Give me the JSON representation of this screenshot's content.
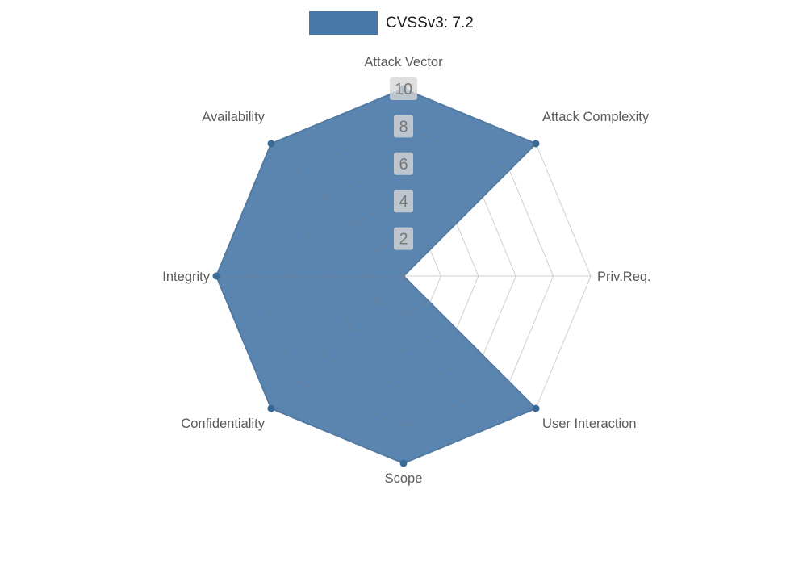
{
  "legend": {
    "label": "CVSSv3: 7.2",
    "swatch_color": "#4878a8"
  },
  "chart_data": {
    "type": "radar",
    "title": "CVSSv3: 7.2",
    "categories": [
      "Attack Vector",
      "Attack Complexity",
      "Priv.Req.",
      "User Interaction",
      "Scope",
      "Confidentiality",
      "Integrity",
      "Availability"
    ],
    "series": [
      {
        "name": "CVSSv3: 7.2",
        "values": [
          10,
          10,
          0,
          10,
          10,
          10,
          10,
          10
        ]
      }
    ],
    "radial_ticks": [
      2,
      4,
      6,
      8,
      10
    ],
    "rmin": 0,
    "rmax": 10,
    "start_axis": "top",
    "direction": "clockwise",
    "grid": true,
    "legend_position": "top-center",
    "colors": {
      "fill": "#4878a8",
      "fill_opacity": 0.9,
      "stroke": "#4878a8",
      "marker": "#3a6a96",
      "grid_line": "#808080",
      "tick_label": "#777777",
      "tick_label_bg": "#d6d6d6",
      "axis_label": "#5a5a5a"
    }
  }
}
